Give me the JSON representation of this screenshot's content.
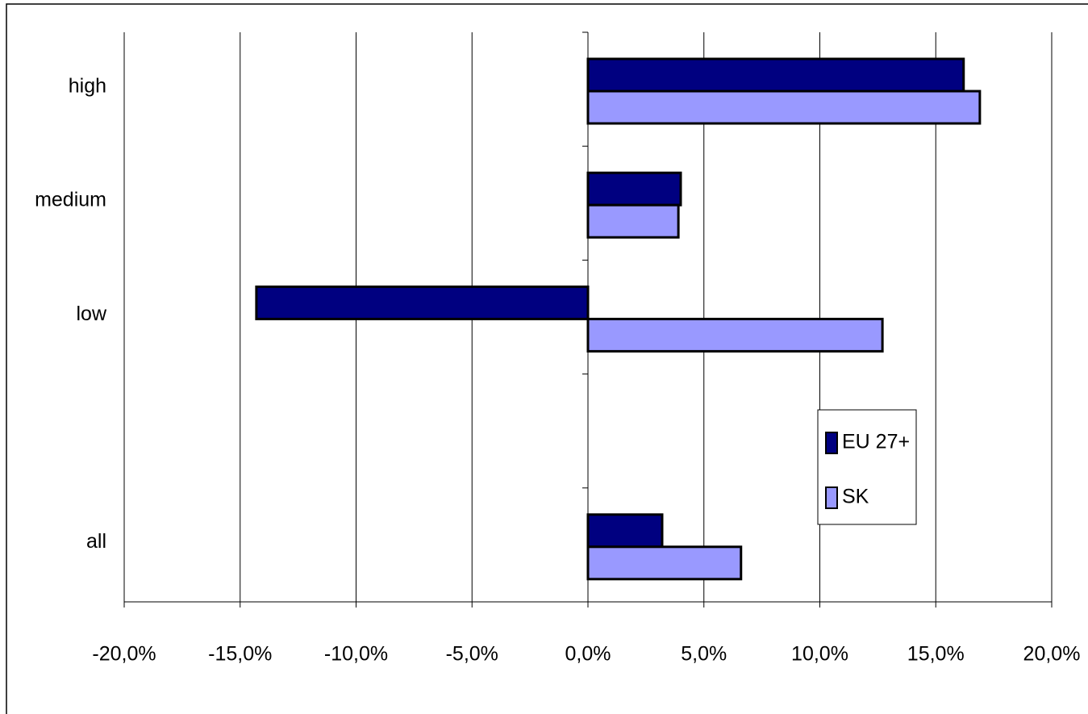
{
  "chart_data": {
    "type": "hbar",
    "categories": [
      "high",
      "medium",
      "low",
      null,
      "all"
    ],
    "series": [
      {
        "name": "EU 27+",
        "color": "#000080",
        "values": [
          16.2,
          4.0,
          -14.3,
          null,
          3.2
        ]
      },
      {
        "name": "SK",
        "color": "#9999ff",
        "values": [
          16.9,
          3.9,
          12.7,
          null,
          6.6
        ]
      }
    ],
    "xlim": [
      -20,
      20
    ],
    "xticks": [
      {
        "value": -20,
        "label": "-20,0%"
      },
      {
        "value": -15,
        "label": "-15,0%"
      },
      {
        "value": -10,
        "label": "-10,0%"
      },
      {
        "value": -5,
        "label": "-5,0%"
      },
      {
        "value": 0,
        "label": "0,0%"
      },
      {
        "value": 5,
        "label": "5,0%"
      },
      {
        "value": 10,
        "label": "10,0%"
      },
      {
        "value": 15,
        "label": "15,0%"
      },
      {
        "value": 20,
        "label": "20,0%"
      }
    ],
    "grid": true,
    "legend": "right"
  }
}
